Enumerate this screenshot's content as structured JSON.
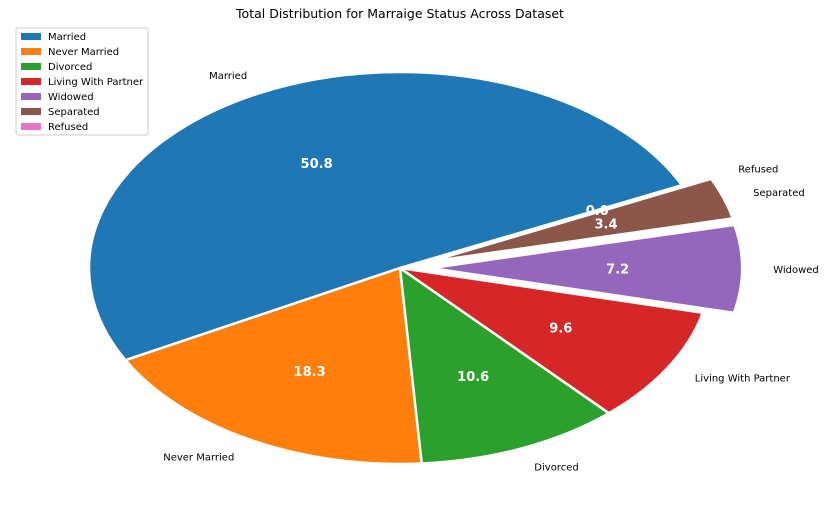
{
  "chart_data": {
    "type": "pie",
    "title": "Total Distribution for Marraige Status Across Dataset",
    "categories": [
      "Married",
      "Never Married",
      "Divorced",
      "Living With Partner",
      "Widowed",
      "Separated",
      "Refused"
    ],
    "values": [
      50.8,
      18.3,
      10.6,
      9.6,
      7.2,
      3.4,
      0.0
    ],
    "value_labels": [
      "50.8",
      "18.3",
      "10.6",
      "9.6",
      "7.2",
      "3.4",
      "0.0"
    ],
    "colors": [
      "#1f77b4",
      "#ff7f0e",
      "#2ca02c",
      "#d62728",
      "#9467bd",
      "#8c564b",
      "#e377c2"
    ],
    "exploded": [
      "Widowed",
      "Separated",
      "Refused"
    ],
    "legend_position": "top-left"
  }
}
